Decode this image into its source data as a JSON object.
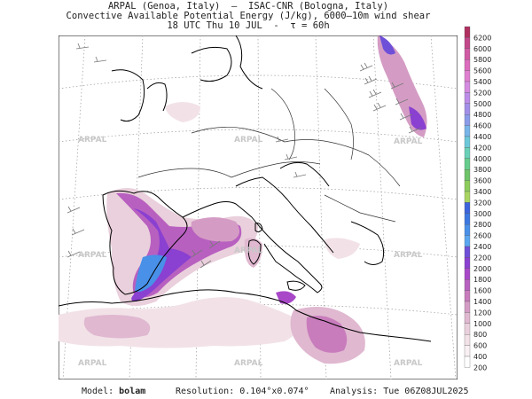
{
  "header": {
    "line1": "ARPAL (Genoa, Italy)  —  ISAC-CNR (Bologna, Italy)",
    "line2": "Convective Available Potential Energy (J/kg), 6000–10m wind shear",
    "line3": "18 UTC Thu 10 JUL  -  τ = 60h"
  },
  "watermark": "ARPAL",
  "colorbar": {
    "labels": [
      "6200",
      "6000",
      "5800",
      "5600",
      "5400",
      "5200",
      "5000",
      "4800",
      "4600",
      "4400",
      "4200",
      "4000",
      "3800",
      "3600",
      "3400",
      "3200",
      "3000",
      "2800",
      "2600",
      "2400",
      "2200",
      "2000",
      "1800",
      "1600",
      "1400",
      "1200",
      "1000",
      "800",
      "600",
      "400",
      "200"
    ],
    "colors": [
      "#b0305f",
      "#c2488a",
      "#d05aa3",
      "#dc6cbd",
      "#e07fd0",
      "#d48be0",
      "#bc8de8",
      "#a28fe8",
      "#8a9be8",
      "#78b4e8",
      "#6cc8d8",
      "#6ad0b8",
      "#66cc8c",
      "#6ec468",
      "#8ccc5c",
      "#a8d460",
      "#3c64dc",
      "#3c78e0",
      "#4890e8",
      "#5aa6f0",
      "#6e50d8",
      "#8a40d0",
      "#a848c8",
      "#b860c0",
      "#c87cbc",
      "#d49cc4",
      "#e0b8d0",
      "#ead0dc",
      "#f2e2e8",
      "#f8f0f2",
      "#ffffff"
    ]
  },
  "footer": {
    "model_label": "Model:",
    "model_value": "bolam",
    "resolution_label": "Resolution:",
    "resolution_value": "0.104°x0.074°",
    "analysis_label": "Analysis:",
    "analysis_value": "Tue 06Z08JUL2025"
  }
}
